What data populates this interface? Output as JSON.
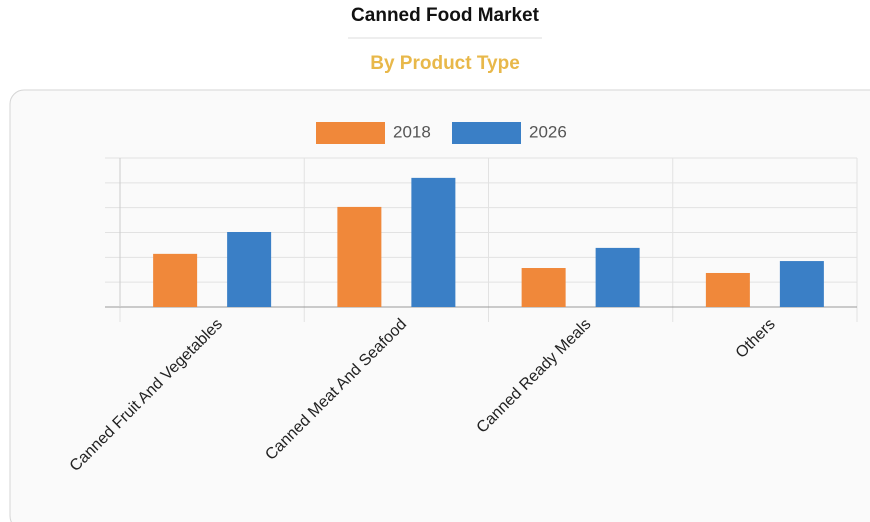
{
  "chart_data": {
    "type": "bar",
    "title": "Canned Food Market",
    "subtitle": "By Product Type",
    "categories": [
      "Canned Fruit And Vegetables",
      "Canned Meat And Seafood",
      "Canned Ready Meals",
      "Others"
    ],
    "series": [
      {
        "name": "2018",
        "color": "#f0883a",
        "values": [
          2.14,
          4.03,
          1.57,
          1.37
        ]
      },
      {
        "name": "2026",
        "color": "#3a7fc6",
        "values": [
          3.02,
          5.2,
          2.38,
          1.85
        ]
      }
    ],
    "ylim": [
      0,
      6
    ],
    "yticks": [
      0,
      1,
      2,
      3,
      4,
      5,
      6
    ],
    "grid": true,
    "legend": "top"
  }
}
